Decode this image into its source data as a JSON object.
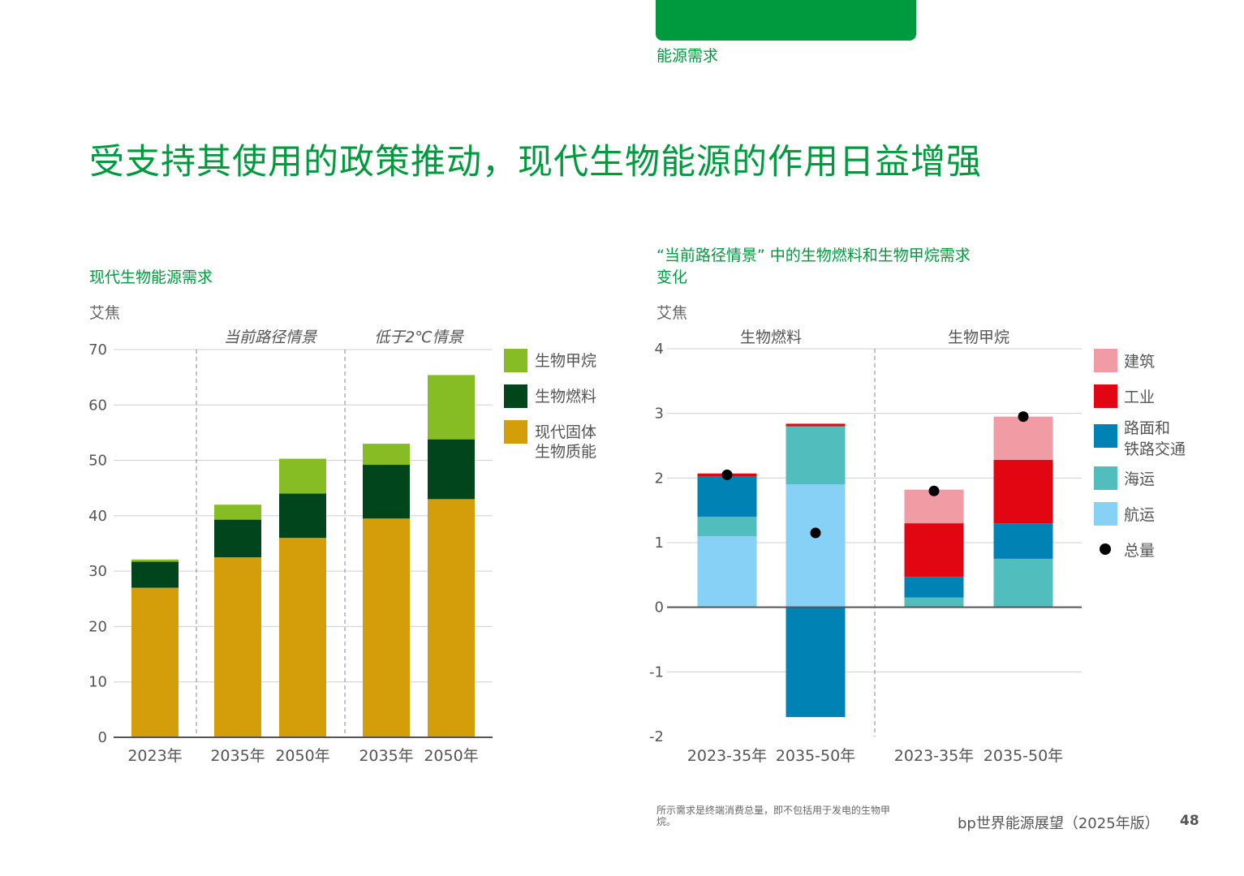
{
  "header": {
    "section": "能源需求"
  },
  "page_title": "受支持其使用的政策推动，现代生物能源的作用日益增强",
  "footer": {
    "note": "所示需求是终端消费总量，即不包括用于发电的生物甲烷。",
    "publication": "bp世界能源展望（2025年版）",
    "page_number": "48"
  },
  "colors": {
    "biomethane_green": "#86bd24",
    "biofuel_darkgreen": "#00451c",
    "solid_biomass_gold": "#d39e0a",
    "buildings_pink": "#f19ba5",
    "industry_red": "#e20613",
    "road_rail_blue": "#0082b4",
    "marine_teal": "#52bdbd",
    "aviation_lightblue": "#86d1f5",
    "total_black": "#000000"
  },
  "chart_data": [
    {
      "type": "bar",
      "stacked": true,
      "title": "现代生物能源需求",
      "ylabel": "艾焦",
      "ylim": [
        0,
        70
      ],
      "yticks": [
        "0",
        "10",
        "20",
        "30",
        "40",
        "50",
        "60",
        "70"
      ],
      "groups": [
        {
          "label": "",
          "categories": [
            "2023年"
          ]
        },
        {
          "label": "当前路径情景",
          "categories": [
            "2035年",
            "2050年"
          ]
        },
        {
          "label": "低于2℃情景",
          "categories": [
            "2035年",
            "2050年"
          ]
        }
      ],
      "categories": [
        "2023年",
        "2035年",
        "2050年",
        "2035年",
        "2050年"
      ],
      "series": [
        {
          "name": "现代固体生物质能",
          "color": "#d39e0a",
          "values": [
            27,
            32.5,
            36,
            39.5,
            43
          ]
        },
        {
          "name": "生物燃料",
          "color": "#00451c",
          "values": [
            4.7,
            6.8,
            8,
            9.7,
            10.8
          ]
        },
        {
          "name": "生物甲烷",
          "color": "#86bd24",
          "values": [
            0.4,
            2.7,
            6.3,
            3.8,
            11.6
          ]
        }
      ],
      "legend": [
        {
          "name": "生物甲烷",
          "color": "#86bd24"
        },
        {
          "name": "生物燃料",
          "color": "#00451c"
        },
        {
          "name_lines": [
            "现代固体",
            "生物质能"
          ],
          "color": "#d39e0a"
        }
      ],
      "legend_position": "right",
      "grid": true
    },
    {
      "type": "bar",
      "stacked": true,
      "title_lines": [
        "“当前路径情景” 中的生物燃料和生物甲烷需求",
        "变化"
      ],
      "ylabel": "艾焦",
      "ylim": [
        -2,
        4
      ],
      "yticks": [
        "-2",
        "-1",
        "0",
        "1",
        "2",
        "3",
        "4"
      ],
      "groups": [
        {
          "label": "生物燃料",
          "categories": [
            "2023-35年",
            "2035-50年"
          ]
        },
        {
          "label": "生物甲烷",
          "categories": [
            "2023-35年",
            "2035-50年"
          ]
        }
      ],
      "categories": [
        "2023-35年",
        "2035-50年",
        "2023-35年",
        "2035-50年"
      ],
      "series": [
        {
          "name": "航运",
          "color": "#86d1f5",
          "values": [
            1.1,
            1.9,
            0,
            0
          ]
        },
        {
          "name": "海运",
          "color": "#52bdbd",
          "values": [
            0.3,
            0.9,
            0.15,
            0.75
          ]
        },
        {
          "name": "路面和铁路交通",
          "color": "#0082b4",
          "values": [
            0.62,
            -1.7,
            0.32,
            0.55
          ]
        },
        {
          "name": "工业",
          "color": "#e20613",
          "values": [
            0.05,
            0.04,
            0.83,
            0.98
          ]
        },
        {
          "name": "建筑",
          "color": "#f19ba5",
          "values": [
            0,
            0,
            0.52,
            0.67
          ]
        }
      ],
      "totals": [
        2.05,
        1.15,
        1.8,
        2.95
      ],
      "legend": [
        {
          "name": "建筑",
          "color": "#f19ba5",
          "kind": "square"
        },
        {
          "name": "工业",
          "color": "#e20613",
          "kind": "square"
        },
        {
          "name_lines": [
            "路面和",
            "铁路交通"
          ],
          "color": "#0082b4",
          "kind": "square"
        },
        {
          "name": "海运",
          "color": "#52bdbd",
          "kind": "square"
        },
        {
          "name": "航运",
          "color": "#86d1f5",
          "kind": "square"
        },
        {
          "name": "总量",
          "color": "#000000",
          "kind": "dot"
        }
      ],
      "legend_position": "right",
      "grid": true
    }
  ]
}
